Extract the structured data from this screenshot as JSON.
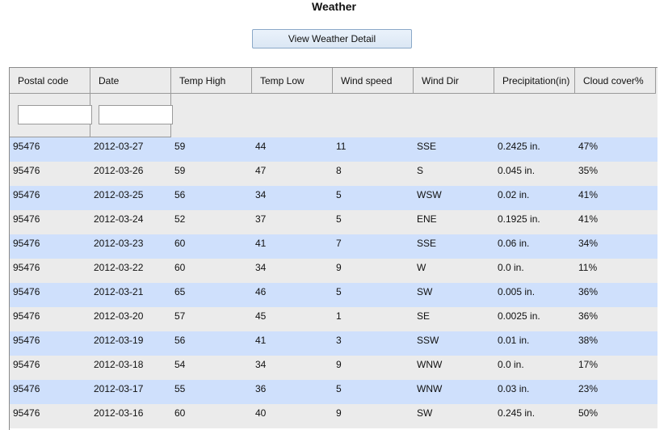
{
  "page": {
    "title": "Weather",
    "view_button_label": "View Weather Detail"
  },
  "table": {
    "columns": [
      "Postal code",
      "Date",
      "Temp High",
      "Temp Low",
      "Wind speed",
      "Wind Dir",
      "Precipitation(in)",
      "Cloud cover%"
    ],
    "filters": {
      "postal_code": "",
      "date": ""
    },
    "rows": [
      [
        "95476",
        "2012-03-27",
        "59",
        "44",
        "11",
        "SSE",
        "0.2425 in.",
        "47%"
      ],
      [
        "95476",
        "2012-03-26",
        "59",
        "47",
        "8",
        "S",
        "0.045 in.",
        "35%"
      ],
      [
        "95476",
        "2012-03-25",
        "56",
        "34",
        "5",
        "WSW",
        "0.02 in.",
        "41%"
      ],
      [
        "95476",
        "2012-03-24",
        "52",
        "37",
        "5",
        "ENE",
        "0.1925 in.",
        "41%"
      ],
      [
        "95476",
        "2012-03-23",
        "60",
        "41",
        "7",
        "SSE",
        "0.06 in.",
        "34%"
      ],
      [
        "95476",
        "2012-03-22",
        "60",
        "34",
        "9",
        "W",
        "0.0 in.",
        "11%"
      ],
      [
        "95476",
        "2012-03-21",
        "65",
        "46",
        "5",
        "SW",
        "0.005 in.",
        "36%"
      ],
      [
        "95476",
        "2012-03-20",
        "57",
        "45",
        "1",
        "SE",
        "0.0025 in.",
        "36%"
      ],
      [
        "95476",
        "2012-03-19",
        "56",
        "41",
        "3",
        "SSW",
        "0.01 in.",
        "38%"
      ],
      [
        "95476",
        "2012-03-18",
        "54",
        "34",
        "9",
        "WNW",
        "0.0 in.",
        "17%"
      ],
      [
        "95476",
        "2012-03-17",
        "55",
        "36",
        "5",
        "WNW",
        "0.03 in.",
        "23%"
      ],
      [
        "95476",
        "2012-03-16",
        "60",
        "40",
        "9",
        "SW",
        "0.245 in.",
        "50%"
      ]
    ]
  }
}
